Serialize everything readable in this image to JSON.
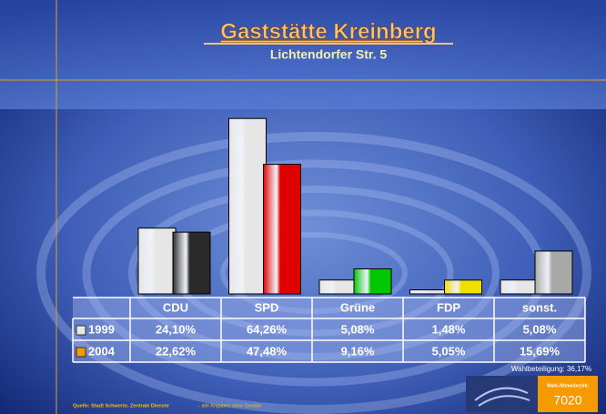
{
  "chart_data": {
    "type": "bar",
    "title": "Gaststätte Kreinberg",
    "subtitle": "Lichtendorfer Str. 5",
    "categories": [
      "CDU",
      "SPD",
      "Grüne",
      "FDP",
      "sonst."
    ],
    "series": [
      {
        "name": "1999",
        "color": "#e6e6e6",
        "colors": [
          "#e6e6e6",
          "#e6e6e6",
          "#e6e6e6",
          "#e6e6e6",
          "#e6e6e6"
        ],
        "values": [
          24.1,
          64.26,
          5.08,
          1.48,
          5.08
        ],
        "value_labels": [
          "24,10%",
          "64,26%",
          "5,08%",
          "1,48%",
          "5,08%"
        ]
      },
      {
        "name": "2004",
        "color": "#f59a00",
        "colors": [
          "#2a2a2a",
          "#e00000",
          "#00c800",
          "#f0e000",
          "#a8a8a8"
        ],
        "values": [
          22.62,
          47.48,
          9.16,
          5.05,
          15.69
        ],
        "value_labels": [
          "22,62%",
          "47,48%",
          "9,16%",
          "5,05%",
          "15,69%"
        ]
      }
    ],
    "turnout": "Wahlbeteiligung: 36,17%",
    "source": "Quelle: Stadt Schwerte, Zentrale Dienste",
    "disclaimer": "- alle Angaben ohne Gewähr",
    "district_label": "Wahl-/Stimmbezirk:",
    "district": "7020"
  }
}
